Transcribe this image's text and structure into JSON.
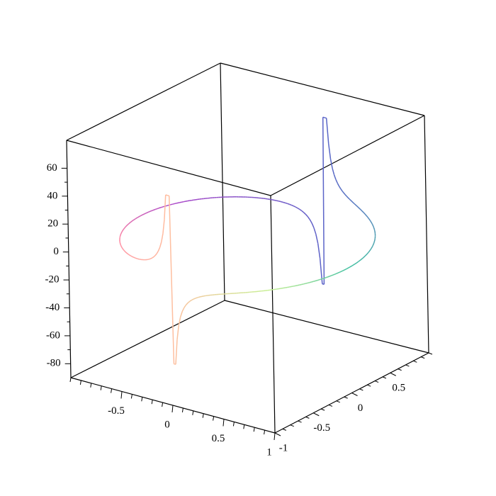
{
  "chart_data": {
    "type": "line",
    "projection": "3d-box",
    "title": "",
    "xlabel": "",
    "ylabel": "",
    "zlabel": "",
    "grid": false,
    "legend": "none",
    "axes": {
      "x": {
        "range": [
          -1,
          1
        ],
        "tick_labels": [
          "-0.5",
          "0",
          "0.5",
          "1"
        ],
        "tick_values": [
          -0.5,
          0,
          0.5,
          1
        ]
      },
      "y": {
        "range": [
          -1,
          1
        ],
        "tick_labels": [
          "-1",
          "-0.5",
          "0",
          "0.5"
        ],
        "tick_values": [
          -1,
          -0.5,
          0,
          0.5
        ]
      },
      "z": {
        "range": [
          -90,
          80
        ],
        "tick_labels": [
          "60",
          "40",
          "20",
          "0",
          "-20",
          "-40",
          "-60",
          "-80"
        ],
        "tick_values": [
          60,
          40,
          20,
          0,
          -20,
          -40,
          -60,
          -80
        ]
      }
    },
    "series": [
      {
        "curve": "space curve x=cos(t), y=sin(t), z=tan-like spikes near t=pi/2 and t=3pi/2",
        "points": [
          {
            "t": 0.0,
            "x": 1.0,
            "y": 0.0,
            "z": 0
          },
          {
            "t": 0.39,
            "x": 0.92,
            "y": 0.38,
            "z": 2
          },
          {
            "t": 0.79,
            "x": 0.71,
            "y": 0.71,
            "z": 4
          },
          {
            "t": 1.18,
            "x": 0.38,
            "y": 0.92,
            "z": 9
          },
          {
            "t": 1.47,
            "x": 0.1,
            "y": 0.99,
            "z": 25
          },
          {
            "t": 1.55,
            "x": 0.02,
            "y": 1.0,
            "z": 60
          },
          {
            "t": 1.59,
            "x": -0.02,
            "y": 1.0,
            "z": -60
          },
          {
            "t": 1.67,
            "x": -0.1,
            "y": 0.99,
            "z": -25
          },
          {
            "t": 1.96,
            "x": -0.38,
            "y": 0.92,
            "z": -9
          },
          {
            "t": 2.36,
            "x": -0.71,
            "y": 0.71,
            "z": -4
          },
          {
            "t": 2.75,
            "x": -0.92,
            "y": 0.38,
            "z": -2
          },
          {
            "t": 3.14,
            "x": -1.0,
            "y": 0.0,
            "z": 0
          },
          {
            "t": 3.53,
            "x": -0.92,
            "y": -0.38,
            "z": 2
          },
          {
            "t": 3.93,
            "x": -0.71,
            "y": -0.71,
            "z": 4
          },
          {
            "t": 4.32,
            "x": -0.38,
            "y": -0.92,
            "z": 9
          },
          {
            "t": 4.61,
            "x": -0.1,
            "y": -0.99,
            "z": 25
          },
          {
            "t": 4.69,
            "x": -0.02,
            "y": -1.0,
            "z": 60
          },
          {
            "t": 4.73,
            "x": 0.02,
            "y": -1.0,
            "z": -60
          },
          {
            "t": 4.81,
            "x": 0.1,
            "y": -0.99,
            "z": -25
          },
          {
            "t": 5.11,
            "x": 0.38,
            "y": -0.92,
            "z": -9
          },
          {
            "t": 5.5,
            "x": 0.71,
            "y": -0.71,
            "z": -4
          },
          {
            "t": 5.89,
            "x": 0.92,
            "y": -0.38,
            "z": -2
          },
          {
            "t": 6.28,
            "x": 1.0,
            "y": 0.0,
            "z": 0
          }
        ]
      }
    ]
  }
}
